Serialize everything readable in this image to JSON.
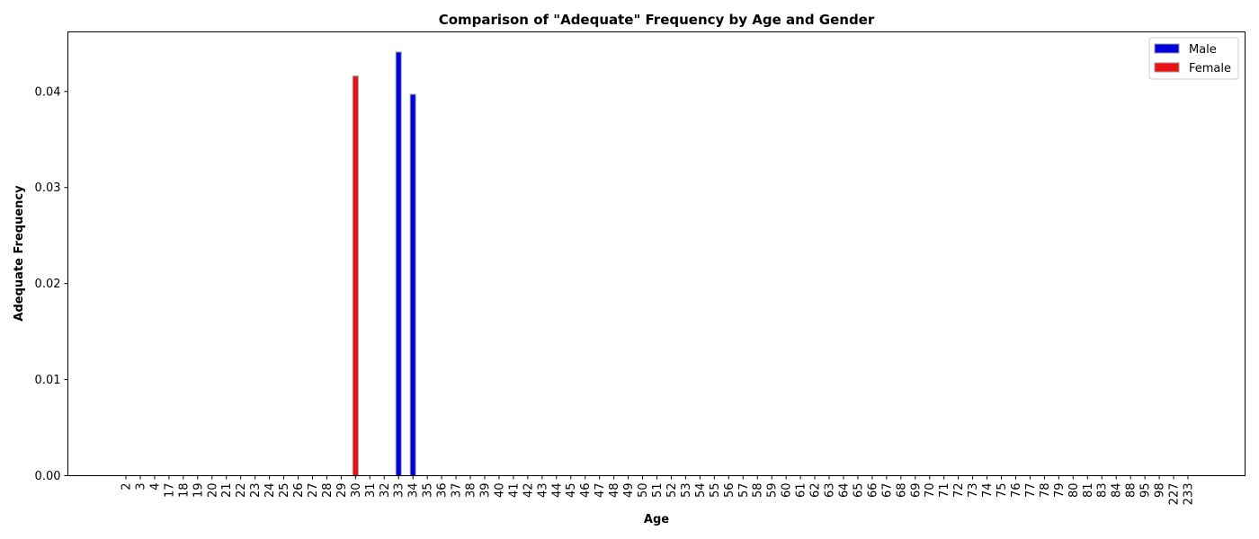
{
  "chart_data": {
    "type": "bar",
    "title": "Comparison of \"Adequate\" Frequency by Age and Gender",
    "xlabel": "Age",
    "ylabel": "Adequate Frequency",
    "ylim": [
      0,
      0.0462
    ],
    "yticks": [
      "0.00",
      "0.01",
      "0.02",
      "0.03",
      "0.04"
    ],
    "ytick_values": [
      0,
      0.01,
      0.02,
      0.03,
      0.04
    ],
    "grid": false,
    "legend_position": "top-right",
    "categories": [
      "2",
      "3",
      "4",
      "17",
      "18",
      "19",
      "20",
      "21",
      "22",
      "23",
      "24",
      "25",
      "26",
      "27",
      "28",
      "29",
      "30",
      "31",
      "32",
      "33",
      "34",
      "35",
      "36",
      "37",
      "38",
      "39",
      "40",
      "41",
      "42",
      "43",
      "44",
      "45",
      "46",
      "47",
      "48",
      "49",
      "50",
      "51",
      "52",
      "53",
      "54",
      "55",
      "56",
      "57",
      "58",
      "59",
      "60",
      "61",
      "62",
      "63",
      "64",
      "65",
      "66",
      "67",
      "68",
      "69",
      "70",
      "71",
      "72",
      "73",
      "74",
      "75",
      "76",
      "77",
      "78",
      "79",
      "80",
      "81",
      "83",
      "84",
      "88",
      "95",
      "98",
      "227",
      "233"
    ],
    "series": [
      {
        "name": "Male",
        "color": "#0000dd",
        "values": [
          0,
          0,
          0,
          0,
          0,
          0,
          0,
          0,
          0,
          0,
          0,
          0,
          0,
          0,
          0,
          0,
          0,
          0,
          0,
          0.0441,
          0.0397,
          0,
          0,
          0,
          0,
          0,
          0,
          0,
          0,
          0,
          0,
          0,
          0,
          0,
          0,
          0,
          0,
          0,
          0,
          0,
          0,
          0,
          0,
          0,
          0,
          0,
          0,
          0,
          0,
          0,
          0,
          0,
          0,
          0,
          0,
          0,
          0,
          0,
          0,
          0,
          0,
          0,
          0,
          0,
          0,
          0,
          0,
          0,
          0,
          0,
          0,
          0,
          0,
          0,
          0
        ]
      },
      {
        "name": "Female",
        "color": "#ee1111",
        "values": [
          0,
          0,
          0,
          0,
          0,
          0,
          0,
          0,
          0,
          0,
          0,
          0,
          0,
          0,
          0,
          0,
          0.0416,
          0,
          0,
          0,
          0,
          0,
          0,
          0,
          0,
          0,
          0,
          0,
          0,
          0,
          0,
          0,
          0,
          0,
          0,
          0,
          0,
          0,
          0,
          0,
          0,
          0,
          0,
          0,
          0,
          0,
          0,
          0,
          0,
          0,
          0,
          0,
          0,
          0,
          0,
          0,
          0,
          0,
          0,
          0,
          0,
          0,
          0,
          0,
          0,
          0,
          0,
          0,
          0,
          0,
          0,
          0,
          0,
          0,
          0
        ]
      }
    ]
  }
}
